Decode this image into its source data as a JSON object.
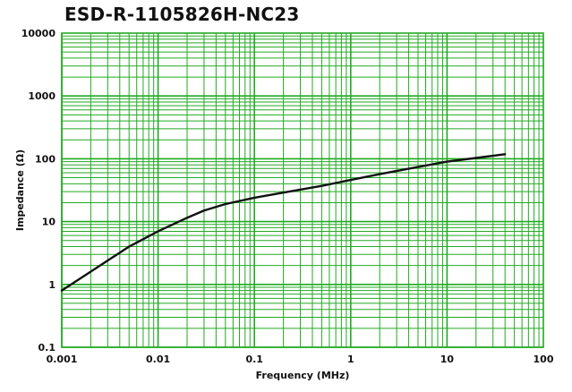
{
  "chart_data": {
    "type": "line",
    "title": "ESD-R-1105826H-NC23",
    "xlabel": "Frequency (MHz)",
    "ylabel": "Impedance (Ω)",
    "x_scale": "log",
    "y_scale": "log",
    "xlim": [
      0.001,
      100
    ],
    "ylim": [
      0.1,
      10000
    ],
    "x_ticks": [
      "0.001",
      "0.01",
      "0.1",
      "1",
      "10",
      "100"
    ],
    "y_ticks": [
      "10000",
      "1000",
      "100",
      "10",
      "1",
      "0.1"
    ],
    "grid": true,
    "grid_color": "#22aa22",
    "line_color": "#111111",
    "series": [
      {
        "x": [
          0.001,
          0.002,
          0.005,
          0.01,
          0.02,
          0.03,
          0.05,
          0.1,
          0.2,
          0.5,
          1,
          2,
          5,
          10,
          20,
          40
        ],
        "y": [
          0.8,
          1.6,
          4.0,
          7.0,
          11.5,
          15,
          19,
          24,
          29,
          37,
          46,
          57,
          74,
          90,
          103,
          118
        ]
      }
    ]
  }
}
